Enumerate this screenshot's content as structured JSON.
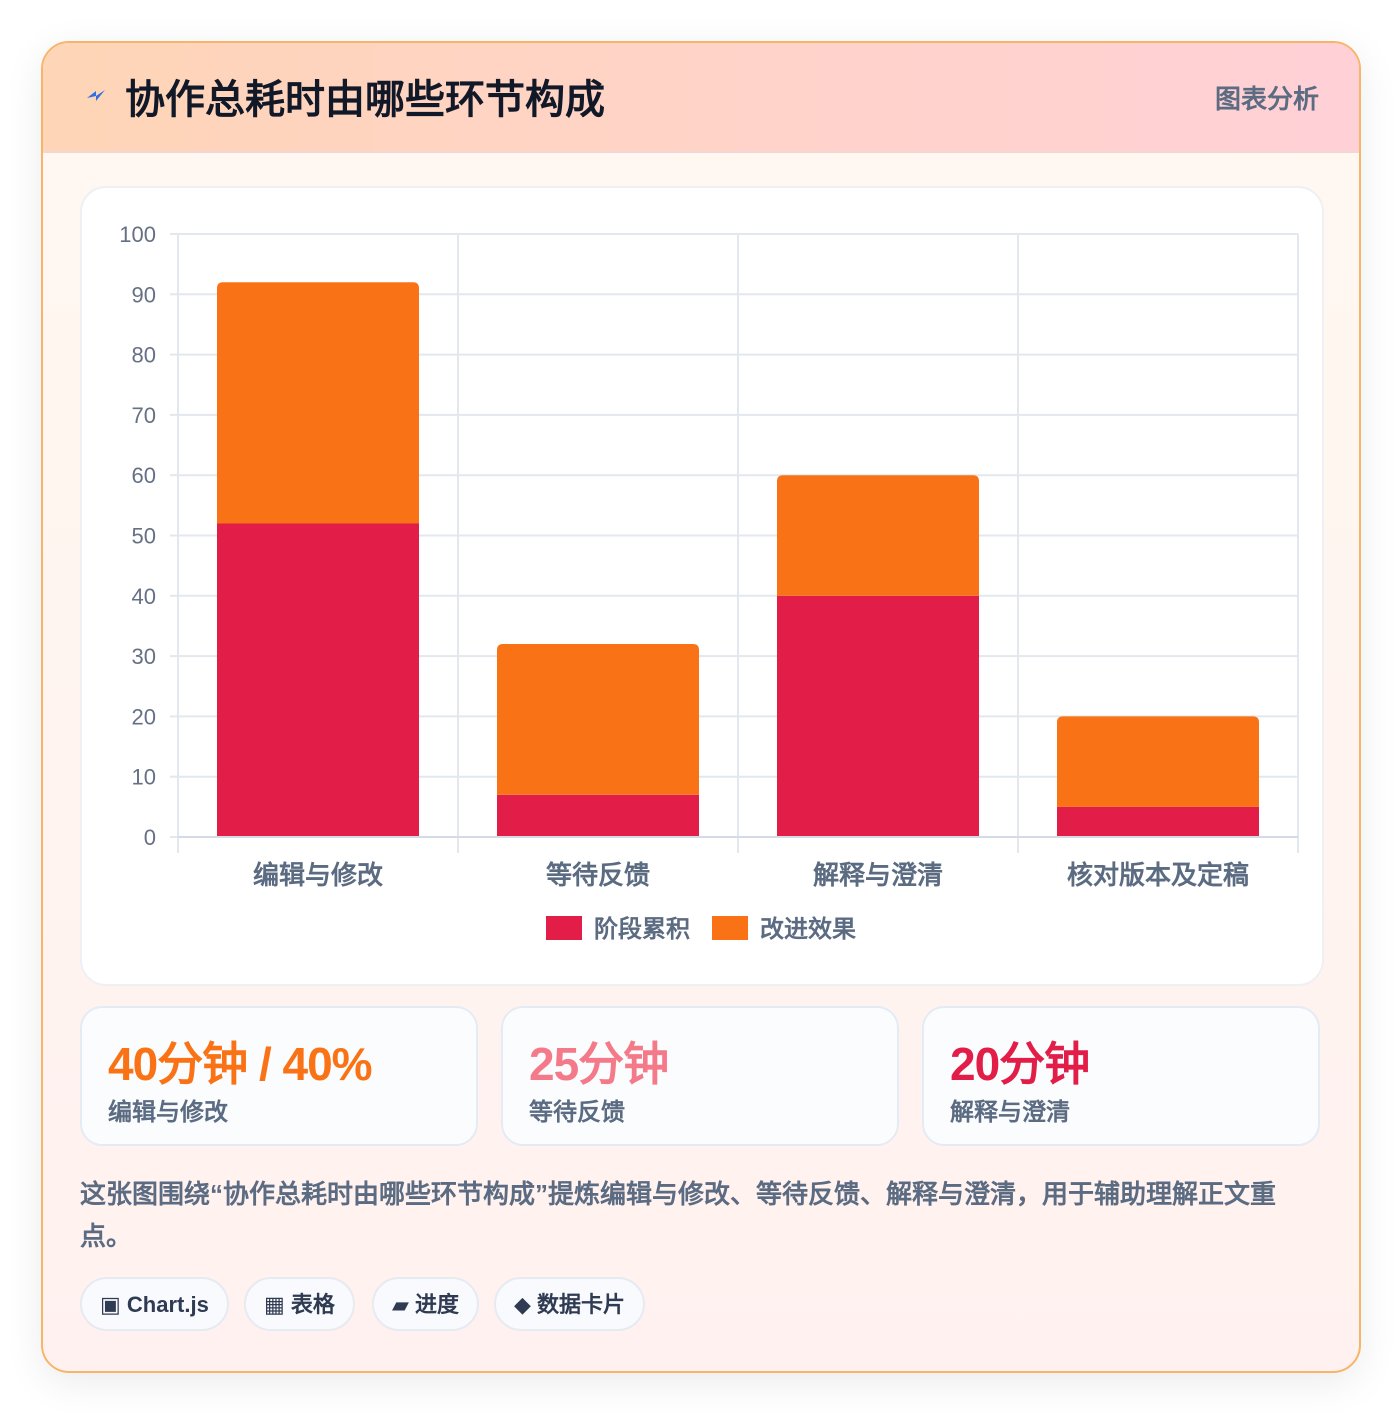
{
  "header": {
    "title": "协作总耗时由哪些环节构成",
    "badge": "图表分析"
  },
  "chart_data": {
    "type": "bar",
    "stacked": true,
    "categories": [
      "编辑与修改",
      "等待反馈",
      "解释与澄清",
      "核对版本及定稿"
    ],
    "series": [
      {
        "name": "阶段累积",
        "values": [
          52,
          7,
          40,
          5
        ],
        "color": "#e11d48"
      },
      {
        "name": "改进效果",
        "values": [
          40,
          25,
          20,
          15
        ],
        "color": "#f97316"
      }
    ],
    "ylim": [
      0,
      100
    ],
    "yticks": [
      0,
      10,
      20,
      30,
      40,
      50,
      60,
      70,
      80,
      90,
      100
    ],
    "grid": true,
    "legend_position": "bottom"
  },
  "stats": [
    {
      "value": "40分钟 / 40%",
      "label": "编辑与修改",
      "color": "#f97316"
    },
    {
      "value": "25分钟",
      "label": "等待反馈",
      "color": "#f47a8a"
    },
    {
      "value": "20分钟",
      "label": "解释与澄清",
      "color": "#e11d48"
    }
  ],
  "description": "这张图围绕“协作总耗时由哪些环节构成”提炼编辑与修改、等待反馈、解释与澄清，用于辅助理解正文重点。",
  "tags": [
    {
      "icon": "▣",
      "icon_name": "square-icon",
      "label": "Chart.js"
    },
    {
      "icon": "▦",
      "icon_name": "table-icon",
      "label": "表格"
    },
    {
      "icon": "▰",
      "icon_name": "progress-icon",
      "label": "进度"
    },
    {
      "icon": "◆",
      "icon_name": "diamond-icon",
      "label": "数据卡片"
    }
  ]
}
